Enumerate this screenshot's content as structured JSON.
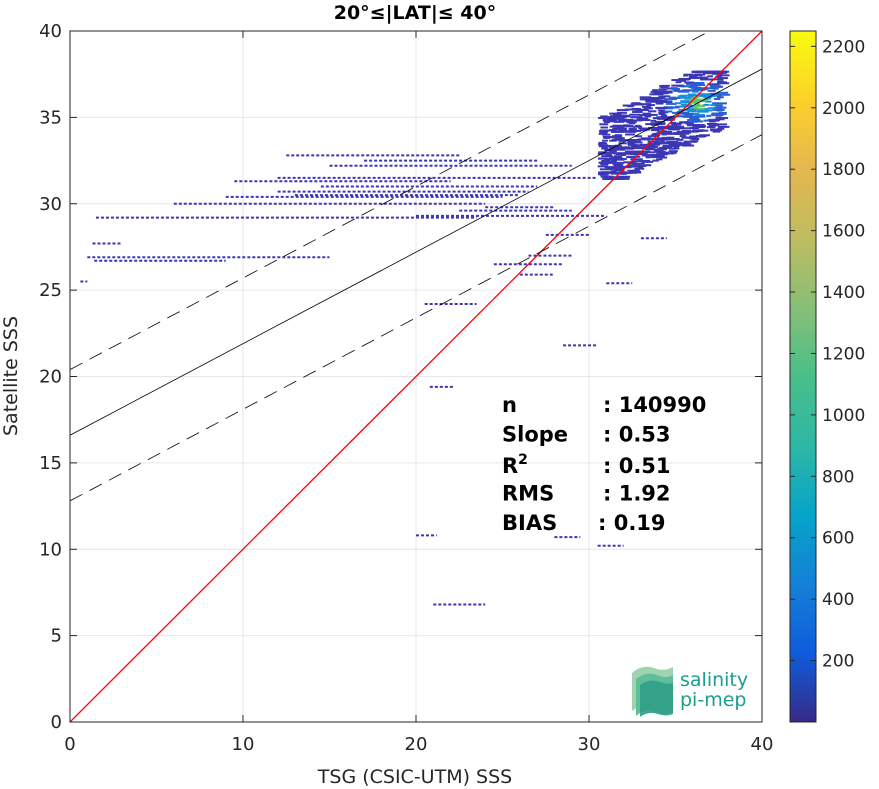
{
  "chart_data": {
    "type": "scatter",
    "title": "20°≤|LAT|≤ 40°",
    "xlabel": "TSG (CSIC-UTM) SSS",
    "ylabel": "Satellite SSS",
    "xlim": [
      0,
      40
    ],
    "ylim": [
      0,
      40
    ],
    "x_ticks": [
      "0",
      "10",
      "20",
      "30",
      "40"
    ],
    "y_ticks": [
      "0",
      "5",
      "10",
      "15",
      "20",
      "25",
      "30",
      "35",
      "40"
    ],
    "grid": true,
    "colorbar": {
      "range": [
        0,
        2250
      ],
      "ticks": [
        "200",
        "400",
        "600",
        "800",
        "1000",
        "1200",
        "1400",
        "1600",
        "1800",
        "2000",
        "2200"
      ],
      "colormap": "parula"
    },
    "lines": [
      {
        "kind": "identity",
        "color": "#ff0000",
        "slope": 1,
        "intercept": 0
      },
      {
        "kind": "regression",
        "color": "#000000",
        "slope": 0.53,
        "intercept": 16.6
      },
      {
        "kind": "regression-upper",
        "color": "#000000",
        "dashed": true,
        "slope": 0.53,
        "intercept": 20.4
      },
      {
        "kind": "regression-lower",
        "color": "#000000",
        "dashed": true,
        "slope": 0.53,
        "intercept": 12.8
      }
    ],
    "stats": [
      {
        "label": "n",
        "value": ": 140990"
      },
      {
        "label": "Slope",
        "value": ": 0.53"
      },
      {
        "label": "R2",
        "value": ": 0.51"
      },
      {
        "label": "RMS",
        "value": ": 1.92"
      },
      {
        "label": "BIAS",
        "value": ": 0.19"
      }
    ],
    "dense_cluster": {
      "x_range": [
        30.5,
        37.5
      ],
      "y_range": [
        31.5,
        37.7
      ],
      "peak": [
        36,
        35.9
      ]
    },
    "segments": [
      {
        "x0": 1.0,
        "x1": 15.0,
        "y": 26.9
      },
      {
        "x0": 1.3,
        "x1": 3.0,
        "y": 27.7
      },
      {
        "x0": 1.4,
        "x1": 9.0,
        "y": 26.7
      },
      {
        "x0": 1.5,
        "x1": 23.5,
        "y": 29.2
      },
      {
        "x0": 6.0,
        "x1": 24.0,
        "y": 30.0
      },
      {
        "x0": 9.0,
        "x1": 25.0,
        "y": 30.4
      },
      {
        "x0": 9.5,
        "x1": 22.0,
        "y": 31.3
      },
      {
        "x0": 12.0,
        "x1": 30.5,
        "y": 31.5
      },
      {
        "x0": 14.5,
        "x1": 27.0,
        "y": 31.0
      },
      {
        "x0": 13.0,
        "x1": 26.0,
        "y": 30.5
      },
      {
        "x0": 12.0,
        "x1": 26.5,
        "y": 30.7
      },
      {
        "x0": 15.0,
        "x1": 29.0,
        "y": 32.2
      },
      {
        "x0": 17.0,
        "x1": 27.0,
        "y": 32.5
      },
      {
        "x0": 12.5,
        "x1": 22.5,
        "y": 32.8
      },
      {
        "x0": 22.5,
        "x1": 29.0,
        "y": 29.6
      },
      {
        "x0": 24.0,
        "x1": 28.0,
        "y": 29.8
      },
      {
        "x0": 20.0,
        "x1": 31.0,
        "y": 29.3
      },
      {
        "x0": 27.5,
        "x1": 30.0,
        "y": 28.2
      },
      {
        "x0": 24.5,
        "x1": 28.5,
        "y": 26.5
      },
      {
        "x0": 26.0,
        "x1": 28.0,
        "y": 25.9
      },
      {
        "x0": 26.5,
        "x1": 29.0,
        "y": 27.0
      },
      {
        "x0": 31.0,
        "x1": 32.5,
        "y": 25.4
      },
      {
        "x0": 33.0,
        "x1": 34.5,
        "y": 28.0
      },
      {
        "x0": 20.5,
        "x1": 23.5,
        "y": 24.2
      },
      {
        "x0": 28.5,
        "x1": 30.5,
        "y": 21.8
      },
      {
        "x0": 20.8,
        "x1": 22.2,
        "y": 19.4
      },
      {
        "x0": 20.0,
        "x1": 21.2,
        "y": 10.8
      },
      {
        "x0": 21.0,
        "x1": 24.0,
        "y": 6.8
      },
      {
        "x0": 28.0,
        "x1": 29.5,
        "y": 10.7
      },
      {
        "x0": 30.5,
        "x1": 32.0,
        "y": 10.2
      },
      {
        "x0": 0.6,
        "x1": 1.0,
        "y": 25.5
      }
    ]
  },
  "logo": {
    "line1": "salinity",
    "line2": "pi-mep"
  }
}
